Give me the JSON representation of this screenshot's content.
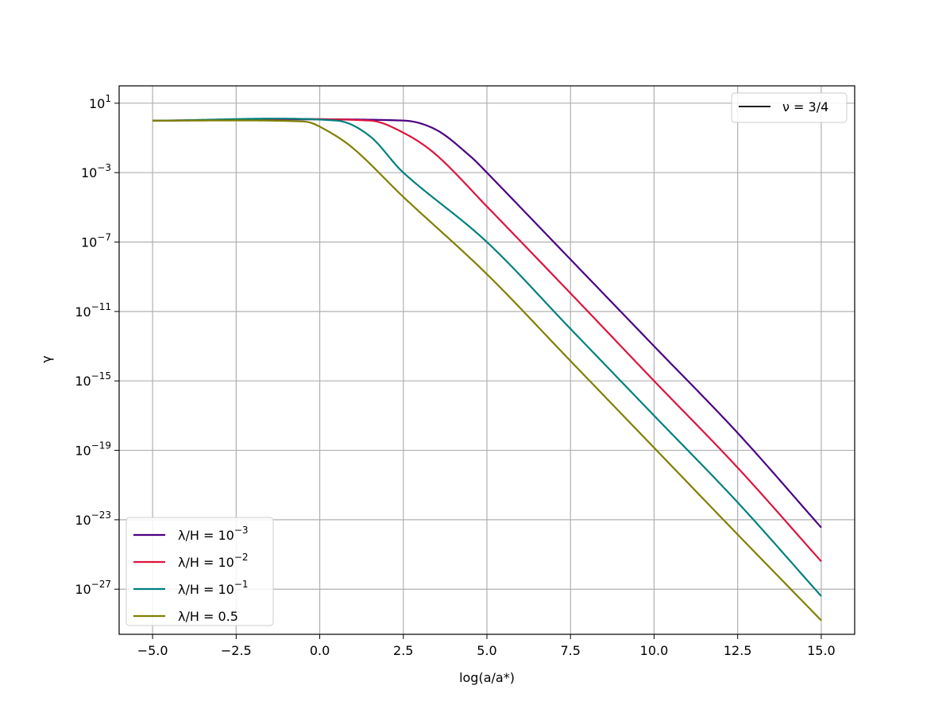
{
  "chart_data": {
    "type": "line",
    "xlabel": "log(a/a*)",
    "ylabel": "γ",
    "xlim": [
      -6.0,
      16.0
    ],
    "ylim_log10": [
      -29.6,
      2.0
    ],
    "y_scale": "log",
    "grid": true,
    "x_ticks": [
      -5.0,
      -2.5,
      0.0,
      2.5,
      5.0,
      7.5,
      10.0,
      12.5,
      15.0
    ],
    "x_tick_labels": [
      "−5.0",
      "−2.5",
      "0.0",
      "2.5",
      "5.0",
      "7.5",
      "10.0",
      "12.5",
      "15.0"
    ],
    "y_ticks_log10": [
      1,
      -3,
      -7,
      -11,
      -15,
      -19,
      -23,
      -27
    ],
    "y_tick_labels": [
      {
        "base": "10",
        "exp": "1"
      },
      {
        "base": "10",
        "exp": "−3"
      },
      {
        "base": "10",
        "exp": "−7"
      },
      {
        "base": "10",
        "exp": "−11"
      },
      {
        "base": "10",
        "exp": "−15"
      },
      {
        "base": "10",
        "exp": "−19"
      },
      {
        "base": "10",
        "exp": "−23"
      },
      {
        "base": "10",
        "exp": "−27"
      }
    ],
    "x_domain": [
      -5.0,
      15.0
    ],
    "legend_main": {
      "placement": "lower-left",
      "entries": [
        {
          "prefix": "λ/H = ",
          "base": "10",
          "exp": "−3"
        },
        {
          "prefix": "λ/H = ",
          "base": "10",
          "exp": "−2"
        },
        {
          "prefix": "λ/H = ",
          "base": "10",
          "exp": "−1"
        },
        {
          "prefix": "λ/H = 0.5",
          "base": "",
          "exp": ""
        }
      ]
    },
    "legend_nu": {
      "placement": "upper-right",
      "label": "ν = 3/4",
      "color": "#000000"
    },
    "series": [
      {
        "name": "λ/H = 10⁻³",
        "color": "#4b0082",
        "points": [
          [
            -5.0,
            0.0
          ],
          [
            2.5,
            0.0
          ],
          [
            3.5,
            -0.55
          ],
          [
            4.5,
            -2.05
          ],
          [
            5.0,
            -3.0
          ],
          [
            7.5,
            -8.0
          ],
          [
            10.0,
            -13.0
          ],
          [
            12.5,
            -18.0
          ],
          [
            15.0,
            -23.45
          ]
        ]
      },
      {
        "name": "λ/H = 10⁻²",
        "color": "#dc143c",
        "points": [
          [
            -5.0,
            0.0
          ],
          [
            1.5,
            0.0
          ],
          [
            2.5,
            -0.7
          ],
          [
            3.5,
            -2.0
          ],
          [
            5.0,
            -4.95
          ],
          [
            7.5,
            -9.95
          ],
          [
            10.0,
            -15.0
          ],
          [
            12.5,
            -20.0
          ],
          [
            15.0,
            -25.4
          ]
        ]
      },
      {
        "name": "λ/H = 10⁻¹",
        "color": "#008080",
        "points": [
          [
            -5.0,
            0.0
          ],
          [
            0.5,
            0.0
          ],
          [
            1.5,
            -0.9
          ],
          [
            2.5,
            -3.0
          ],
          [
            5.0,
            -7.0
          ],
          [
            7.5,
            -12.0
          ],
          [
            10.0,
            -17.0
          ],
          [
            12.5,
            -22.0
          ],
          [
            15.0,
            -27.4
          ]
        ]
      },
      {
        "name": "λ/H = 0.5",
        "color": "#808000",
        "points": [
          [
            -5.0,
            0.0
          ],
          [
            -0.5,
            -0.05
          ],
          [
            0.0,
            -0.35
          ],
          [
            1.0,
            -1.6
          ],
          [
            2.5,
            -4.4
          ],
          [
            5.0,
            -8.85
          ],
          [
            7.5,
            -13.85
          ],
          [
            10.0,
            -18.85
          ],
          [
            12.5,
            -23.85
          ],
          [
            15.0,
            -28.8
          ]
        ]
      }
    ]
  }
}
